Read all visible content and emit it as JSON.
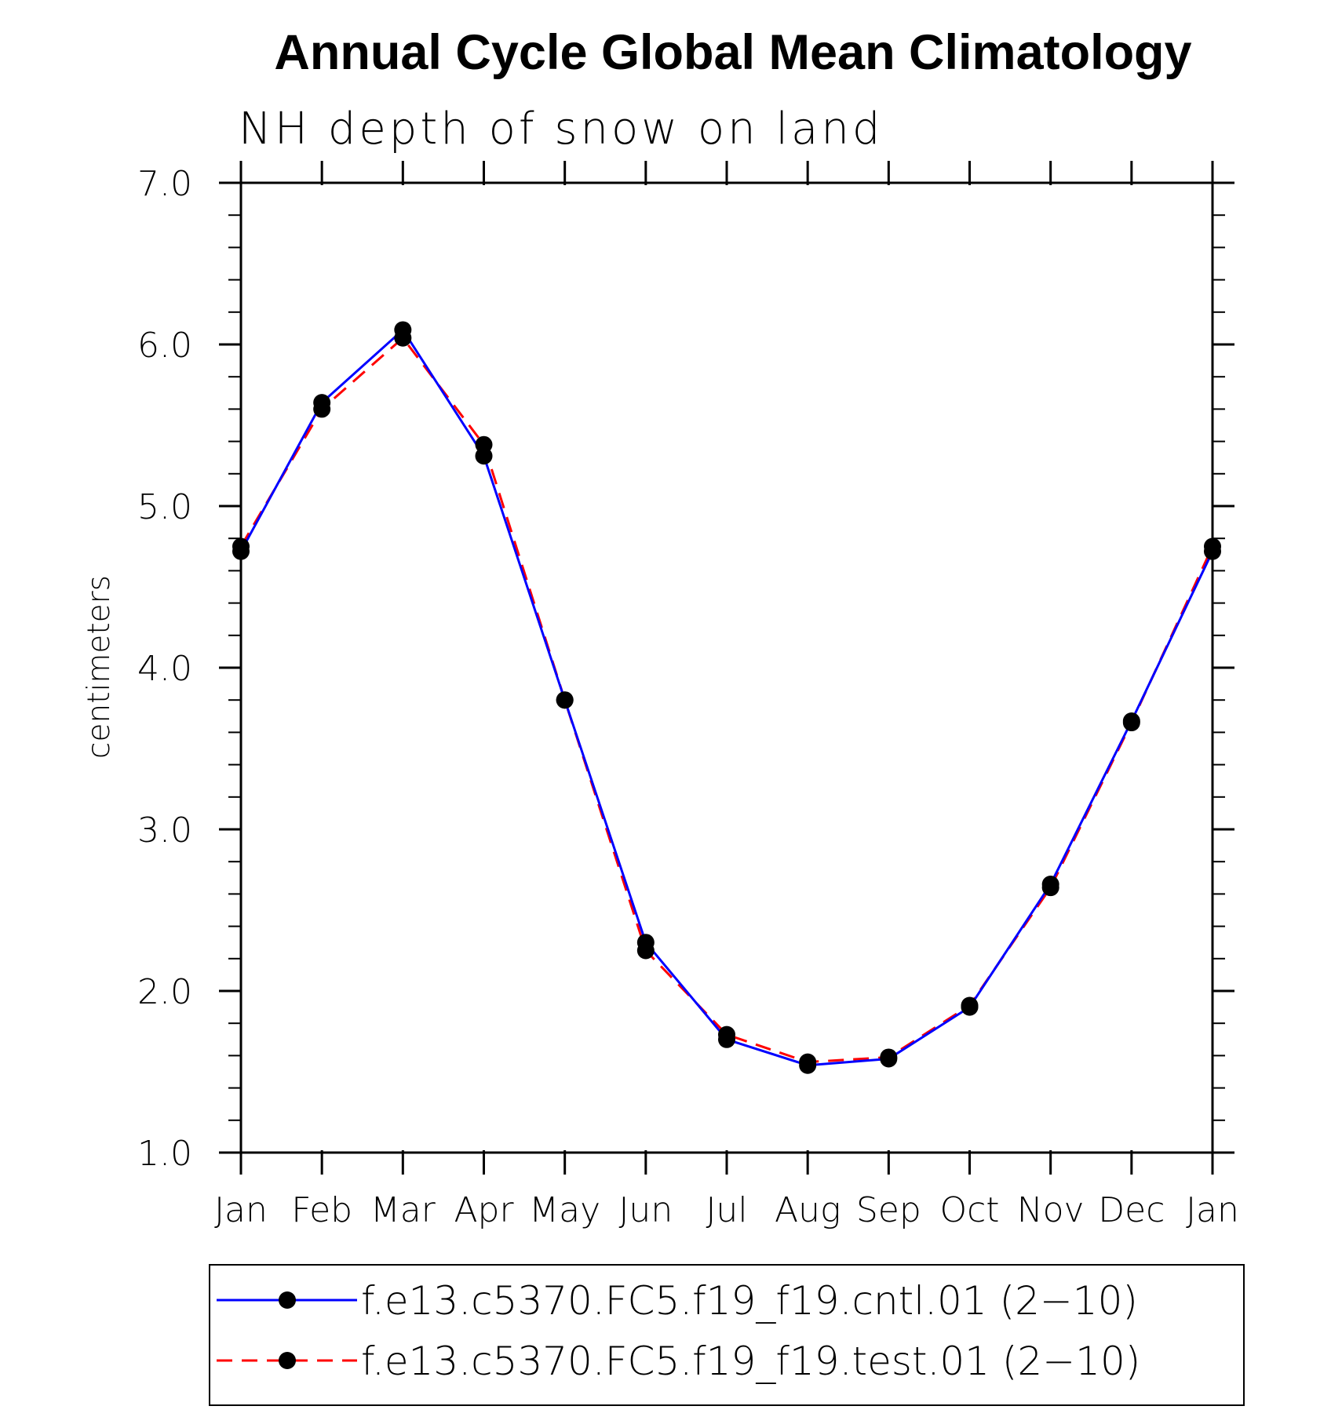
{
  "chart_data": {
    "type": "line",
    "title": "Annual Cycle Global Mean Climatology",
    "subtitle": "NH depth of snow on land",
    "xlabel": "",
    "ylabel": "centimeters",
    "categories": [
      "Jan",
      "Feb",
      "Mar",
      "Apr",
      "May",
      "Jun",
      "Jul",
      "Aug",
      "Sep",
      "Oct",
      "Nov",
      "Dec",
      "Jan"
    ],
    "ylim": [
      1.0,
      7.0
    ],
    "yticks": [
      "1.0",
      "2.0",
      "3.0",
      "4.0",
      "5.0",
      "6.0",
      "7.0"
    ],
    "grid": false,
    "legend_position": "bottom",
    "series": [
      {
        "name": "f.e13.c5370.FC5.f19_f19.cntl.01 (2−10)",
        "color": "#0000ff",
        "style": "solid",
        "marker": "filled-circle",
        "values": [
          4.72,
          5.64,
          6.09,
          5.31,
          3.8,
          2.3,
          1.7,
          1.54,
          1.58,
          1.9,
          2.66,
          3.67,
          4.72
        ]
      },
      {
        "name": "f.e13.c5370.FC5.f19_f19.test.01 (2−10)",
        "color": "#ff0000",
        "style": "dashed",
        "marker": "filled-circle",
        "values": [
          4.75,
          5.6,
          6.04,
          5.38,
          3.8,
          2.25,
          1.73,
          1.56,
          1.59,
          1.91,
          2.64,
          3.66,
          4.75
        ]
      }
    ]
  }
}
